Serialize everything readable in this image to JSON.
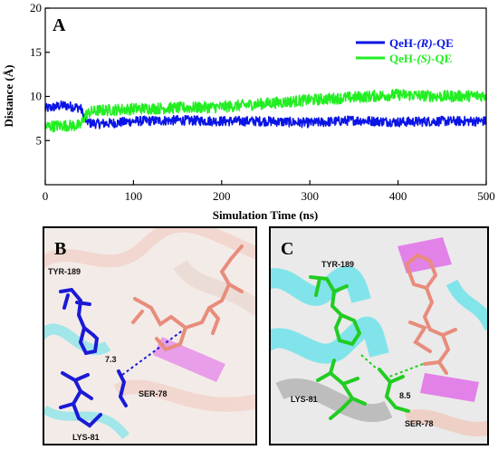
{
  "chart_data": {
    "type": "line",
    "panel_label": "A",
    "xlabel": "Simulation Time (ns)",
    "ylabel": "Distance (Å)",
    "xlim": [
      0,
      500
    ],
    "ylim": [
      0,
      20
    ],
    "xticks": [
      0,
      100,
      200,
      300,
      400,
      500
    ],
    "yticks": [
      5,
      10,
      15,
      20
    ],
    "ytick_labels": [
      "5",
      "10",
      "15",
      "20"
    ],
    "legend_position": "top-right",
    "series": [
      {
        "name_prefix": "QeH-",
        "name_italic": "(R)",
        "name_suffix": "-QE",
        "color": "#0a14e6",
        "x": [
          0,
          20,
          40,
          45,
          50,
          60,
          80,
          100,
          150,
          200,
          250,
          300,
          350,
          400,
          450,
          500
        ],
        "y": [
          8.6,
          9.0,
          8.7,
          7.4,
          7.0,
          6.9,
          7.0,
          7.2,
          7.3,
          7.2,
          7.2,
          7.0,
          7.3,
          7.1,
          7.2,
          7.2
        ]
      },
      {
        "name_prefix": "QeH-",
        "name_italic": "(S)",
        "name_suffix": "-QE",
        "color": "#22ee22",
        "x": [
          0,
          20,
          40,
          45,
          50,
          60,
          80,
          100,
          150,
          200,
          250,
          300,
          350,
          400,
          450,
          500
        ],
        "y": [
          6.6,
          6.7,
          6.7,
          7.8,
          8.2,
          8.4,
          8.5,
          8.6,
          8.7,
          8.8,
          9.2,
          9.6,
          9.9,
          10.2,
          10.0,
          10.1
        ]
      }
    ]
  },
  "panel_b": {
    "letter": "B",
    "labels": {
      "tyr": "TYR-189",
      "ser": "SER-78",
      "lys": "LYS-81",
      "distance": "7.3"
    }
  },
  "panel_c": {
    "letter": "C",
    "labels": {
      "tyr": "TYR-189",
      "ser": "SER-78",
      "lys": "LYS-81",
      "distance": "8.5"
    }
  },
  "colors": {
    "blue_residue": "#1a1ad6",
    "green_residue": "#22cc22",
    "ligand": "#e88c7c",
    "cartoon_cyan": "#5fe3ea",
    "cartoon_pink": "#f0c8bc",
    "cartoon_magenta": "#e060e8"
  }
}
